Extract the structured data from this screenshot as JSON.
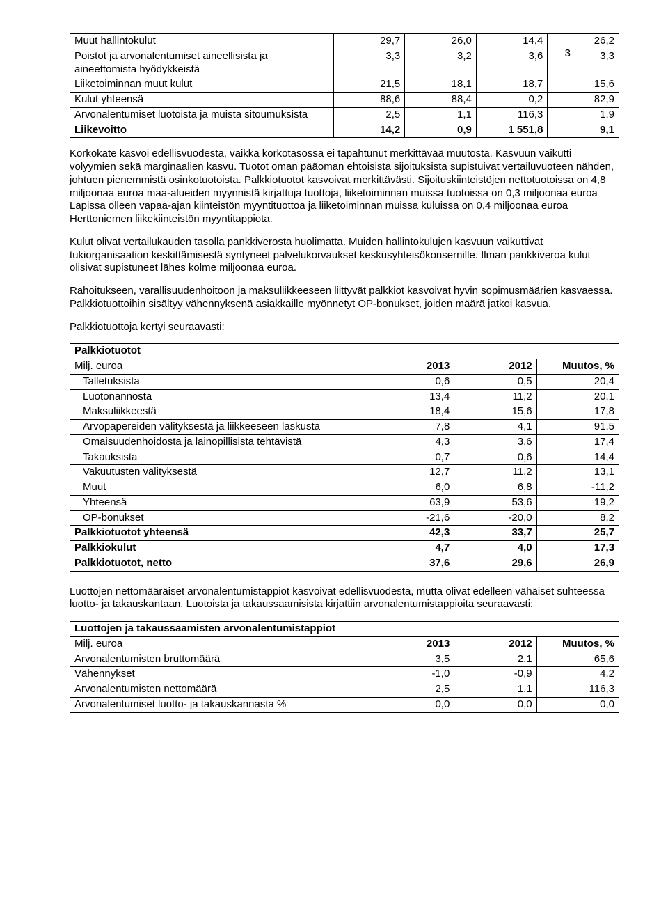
{
  "pageNumber": "3",
  "table1": {
    "rows": [
      {
        "label": "Muut hallintokulut",
        "v": [
          "29,7",
          "26,0",
          "14,4",
          "26,2"
        ],
        "indent": false,
        "bold": false
      },
      {
        "label": "Poistot ja arvonalentumiset aineellisista ja aineettomista hyödykkeistä",
        "v": [
          "3,3",
          "3,2",
          "3,6",
          "3,3"
        ],
        "indent": false,
        "bold": false
      },
      {
        "label": "Liiketoiminnan muut kulut",
        "v": [
          "21,5",
          "18,1",
          "18,7",
          "15,6"
        ],
        "indent": false,
        "bold": false
      },
      {
        "label": "Kulut yhteensä",
        "v": [
          "88,6",
          "88,4",
          "0,2",
          "82,9"
        ],
        "indent": false,
        "bold": false
      },
      {
        "label": "Arvonalentumiset luotoista ja muista sitoumuksista",
        "v": [
          "2,5",
          "1,1",
          "116,3",
          "1,9"
        ],
        "indent": false,
        "bold": false
      },
      {
        "label": "Liikevoitto",
        "v": [
          "14,2",
          "0,9",
          "1 551,8",
          "9,1"
        ],
        "indent": false,
        "bold": true
      }
    ],
    "colWidths": [
      "48%",
      "13%",
      "13%",
      "13%",
      "13%"
    ]
  },
  "para1": "Korkokate kasvoi edellisvuodesta, vaikka korkotasossa ei tapahtunut merkittävää muutosta. Kasvuun vaikutti volyymien sekä marginaalien kasvu. Tuotot oman pääoman ehtoisista sijoituksista supistuivat vertailuvuoteen nähden, johtuen pienemmistä osinkotuotoista. Palkkiotuotot kasvoivat merkittävästi. Sijoituskiinteistöjen nettotuotoissa on 4,8 miljoonaa euroa maa-alueiden myynnistä kirjattuja tuottoja, liiketoiminnan muissa tuotoissa on 0,3 miljoonaa euroa Lapissa olleen vapaa-ajan kiinteistön myyntituottoa ja liiketoiminnan muissa kuluissa on 0,4 miljoonaa euroa Herttoniemen liikekiinteistön myyntitappiota.",
  "para2": "Kulut olivat vertailukauden tasolla pankkiverosta huolimatta. Muiden hallintokulujen kasvuun vaikuttivat tukiorganisaation keskittämisestä syntyneet palvelukorvaukset keskusyhteisökonsernille. Ilman pankkiveroa kulut olisivat supistuneet lähes kolme miljoonaa euroa.",
  "para3": "Rahoitukseen, varallisuudenhoitoon ja maksuliikkeeseen liittyvät palkkiot kasvoivat hyvin sopimusmäärien kasvaessa. Palkkiotuottoihin sisältyy vähennyksenä asiakkaille myönnetyt OP-bonukset, joiden määrä jatkoi kasvua.",
  "para4": "Palkkiotuottoja kertyi seuraavasti:",
  "table2": {
    "title": "Palkkiotuotot",
    "headerRow": [
      "Milj. euroa",
      "2013",
      "2012",
      "Muutos, %"
    ],
    "rows": [
      {
        "label": "Talletuksista",
        "v": [
          "0,6",
          "0,5",
          "20,4"
        ],
        "indent": true,
        "bold": false
      },
      {
        "label": "Luotonannosta",
        "v": [
          "13,4",
          "11,2",
          "20,1"
        ],
        "indent": true,
        "bold": false
      },
      {
        "label": "Maksuliikkeestä",
        "v": [
          "18,4",
          "15,6",
          "17,8"
        ],
        "indent": true,
        "bold": false
      },
      {
        "label": "Arvopapereiden välityksestä ja liikkeeseen laskusta",
        "v": [
          "7,8",
          "4,1",
          "91,5"
        ],
        "indent": true,
        "bold": false
      },
      {
        "label": "Omaisuudenhoidosta ja lainopillisista tehtävistä",
        "v": [
          "4,3",
          "3,6",
          "17,4"
        ],
        "indent": true,
        "bold": false
      },
      {
        "label": "Takauksista",
        "v": [
          "0,7",
          "0,6",
          "14,4"
        ],
        "indent": true,
        "bold": false
      },
      {
        "label": "Vakuutusten välityksestä",
        "v": [
          "12,7",
          "11,2",
          "13,1"
        ],
        "indent": true,
        "bold": false
      },
      {
        "label": "Muut",
        "v": [
          "6,0",
          "6,8",
          "-11,2"
        ],
        "indent": true,
        "bold": false
      },
      {
        "label": "Yhteensä",
        "v": [
          "63,9",
          "53,6",
          "19,2"
        ],
        "indent": true,
        "bold": false
      },
      {
        "label": "OP-bonukset",
        "v": [
          "-21,6",
          "-20,0",
          "8,2"
        ],
        "indent": true,
        "bold": false
      },
      {
        "label": "Palkkiotuotot yhteensä",
        "v": [
          "42,3",
          "33,7",
          "25,7"
        ],
        "indent": false,
        "bold": true
      },
      {
        "label": "Palkkiokulut",
        "v": [
          "4,7",
          "4,0",
          "17,3"
        ],
        "indent": false,
        "bold": true
      },
      {
        "label": "Palkkiotuotot, netto",
        "v": [
          "37,6",
          "29,6",
          "26,9"
        ],
        "indent": false,
        "bold": true
      }
    ],
    "colWidths": [
      "55%",
      "15%",
      "15%",
      "15%"
    ]
  },
  "para5": "Luottojen nettomääräiset arvonalentumistappiot kasvoivat edellisvuodesta, mutta olivat edelleen vähäiset suhteessa luotto- ja takauskantaan. Luotoista ja takaussaamisista kirjattiin arvonalentumistappioita seuraavasti:",
  "table3": {
    "title": "Luottojen ja takaussaamisten arvonalentumistappiot",
    "headerRow": [
      "Milj. euroa",
      "2013",
      "2012",
      "Muutos, %"
    ],
    "rows": [
      {
        "label": "Arvonalentumisten bruttomäärä",
        "v": [
          "3,5",
          "2,1",
          "65,6"
        ],
        "indent": false,
        "bold": false
      },
      {
        "label": "Vähennykset",
        "v": [
          "-1,0",
          "-0,9",
          "4,2"
        ],
        "indent": false,
        "bold": false
      },
      {
        "label": "Arvonalentumisten nettomäärä",
        "v": [
          "2,5",
          "1,1",
          "116,3"
        ],
        "indent": false,
        "bold": false
      },
      {
        "label": "Arvonalentumiset luotto- ja takauskannasta %",
        "v": [
          "0,0",
          "0,0",
          "0,0"
        ],
        "indent": false,
        "bold": false
      }
    ],
    "colWidths": [
      "55%",
      "15%",
      "15%",
      "15%"
    ]
  }
}
